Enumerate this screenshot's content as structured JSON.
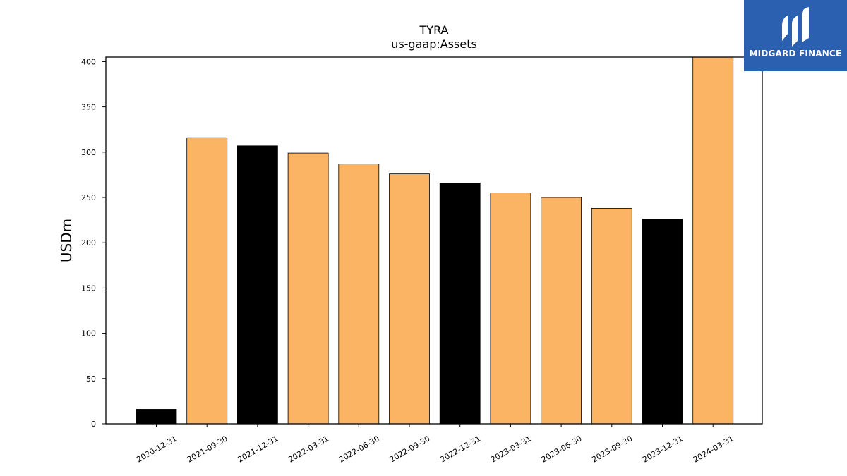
{
  "chart_data": {
    "type": "bar",
    "title": "TYRA",
    "subtitle": "us-gaap:Assets",
    "xlabel": "",
    "ylabel": "USDm",
    "ylim": [
      0,
      405
    ],
    "yticks": [
      0,
      50,
      100,
      150,
      200,
      250,
      300,
      350,
      400
    ],
    "grid": false,
    "categories": [
      "2020-12-31",
      "2021-09-30",
      "2021-12-31",
      "2022-03-31",
      "2022-06-30",
      "2022-09-30",
      "2022-12-31",
      "2023-03-31",
      "2023-06-30",
      "2023-09-30",
      "2023-12-31",
      "2024-03-31"
    ],
    "values": [
      16,
      316,
      307,
      299,
      287,
      276,
      266,
      255,
      250,
      238,
      226,
      405
    ],
    "bar_colors": [
      "#000000",
      "#fbb464",
      "#000000",
      "#fbb464",
      "#fbb464",
      "#fbb464",
      "#000000",
      "#fbb464",
      "#fbb464",
      "#fbb464",
      "#000000",
      "#fbb464"
    ]
  },
  "logo": {
    "text": "MIDGARD FINANCE",
    "background": "#2b5fb0",
    "icon": "midgard-logo-icon"
  }
}
